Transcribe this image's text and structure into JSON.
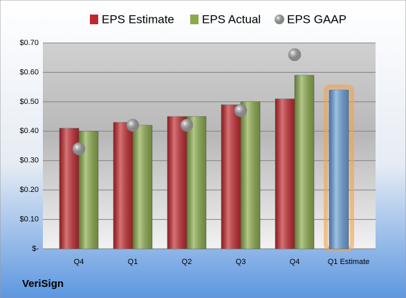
{
  "chart_data": {
    "type": "bar",
    "company": "VeriSign",
    "categories": [
      "Q4",
      "Q1",
      "Q2",
      "Q3",
      "Q4",
      "Q1 Estimate"
    ],
    "series": [
      {
        "name": "EPS Estimate",
        "color": "#c0282d",
        "values": [
          0.41,
          0.43,
          0.45,
          0.49,
          0.51,
          null
        ]
      },
      {
        "name": "EPS Actual",
        "color": "#8aaa4a",
        "values": [
          0.4,
          0.42,
          0.45,
          0.5,
          0.59,
          null
        ]
      },
      {
        "name": "EPS GAAP",
        "color": "#a8a8a8",
        "values": [
          0.34,
          0.42,
          0.42,
          0.47,
          0.66,
          null
        ]
      }
    ],
    "projection": {
      "color": "#6a9fd8",
      "values": [
        null,
        null,
        null,
        null,
        null,
        0.54
      ]
    },
    "ylim": [
      0,
      0.7
    ],
    "yticks": [
      {
        "value": 0,
        "label": "$-"
      },
      {
        "value": 0.1,
        "label": "$0.10"
      },
      {
        "value": 0.2,
        "label": "$0.20"
      },
      {
        "value": 0.3,
        "label": "$0.30"
      },
      {
        "value": 0.4,
        "label": "$0.40"
      },
      {
        "value": 0.5,
        "label": "$0.50"
      },
      {
        "value": 0.6,
        "label": "$0.60"
      },
      {
        "value": 0.7,
        "label": "$0.70"
      }
    ],
    "grid": true
  }
}
